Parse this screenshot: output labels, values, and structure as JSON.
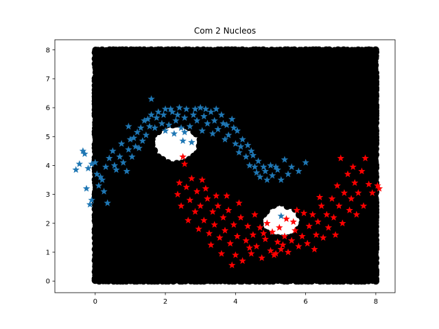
{
  "chart_data": {
    "type": "scatter",
    "title": "Com 2 Nucleos",
    "xlabel": "",
    "ylabel": "",
    "xlim": [
      -1.15,
      8.55
    ],
    "ylim": [
      -0.4,
      8.35
    ],
    "xticks": [
      0,
      2,
      4,
      6,
      8
    ],
    "yticks": [
      0,
      1,
      2,
      3,
      4,
      5,
      6,
      7,
      8
    ],
    "grid": false,
    "legend": "none",
    "background_region": {
      "marker": "circle",
      "color": "#000000",
      "x_range": [
        0,
        8
      ],
      "y_range": [
        0,
        8
      ],
      "excluded_regions": [
        {
          "center": [
            2.3,
            4.75
          ],
          "radius": 0.65
        },
        {
          "center": [
            5.3,
            2.05
          ],
          "radius": 0.55
        }
      ]
    },
    "series": [
      {
        "marker": "star",
        "color": "#1f77b4",
        "points": [
          [
            -0.55,
            3.85
          ],
          [
            -0.45,
            4.05
          ],
          [
            -0.35,
            4.5
          ],
          [
            -0.3,
            4.4
          ],
          [
            -0.25,
            3.2
          ],
          [
            -0.15,
            2.65
          ],
          [
            -0.1,
            2.8
          ],
          [
            -0.2,
            3.9
          ],
          [
            -0.1,
            4.05
          ],
          [
            0.0,
            4.1
          ],
          [
            0.05,
            3.7
          ],
          [
            0.1,
            3.3
          ],
          [
            0.2,
            3.5
          ],
          [
            0.25,
            3.1
          ],
          [
            0.35,
            2.7
          ],
          [
            0.3,
            3.95
          ],
          [
            0.4,
            4.25
          ],
          [
            0.5,
            4.5
          ],
          [
            0.55,
            4.0
          ],
          [
            0.6,
            3.85
          ],
          [
            0.7,
            4.3
          ],
          [
            0.75,
            4.75
          ],
          [
            0.8,
            4.1
          ],
          [
            0.9,
            3.8
          ],
          [
            0.95,
            4.55
          ],
          [
            1.0,
            4.9
          ],
          [
            1.05,
            4.3
          ],
          [
            1.1,
            4.95
          ],
          [
            1.2,
            5.15
          ],
          [
            1.25,
            4.6
          ],
          [
            1.3,
            5.3
          ],
          [
            1.4,
            5.55
          ],
          [
            1.45,
            5.05
          ],
          [
            1.5,
            5.6
          ],
          [
            1.6,
            5.75
          ],
          [
            1.6,
            6.3
          ],
          [
            1.7,
            5.3
          ],
          [
            1.8,
            5.85
          ],
          [
            1.9,
            5.45
          ],
          [
            2.0,
            5.95
          ],
          [
            2.0,
            5.2
          ],
          [
            2.1,
            5.4
          ],
          [
            2.2,
            5.85
          ],
          [
            2.25,
            5.1
          ],
          [
            2.3,
            5.55
          ],
          [
            2.4,
            6.0
          ],
          [
            2.45,
            5.3
          ],
          [
            2.5,
            4.85
          ],
          [
            2.55,
            5.65
          ],
          [
            2.6,
            5.95
          ],
          [
            2.7,
            5.35
          ],
          [
            2.75,
            4.8
          ],
          [
            2.8,
            5.75
          ],
          [
            2.9,
            5.55
          ],
          [
            3.0,
            6.0
          ],
          [
            3.05,
            5.2
          ],
          [
            3.1,
            5.7
          ],
          [
            3.2,
            5.45
          ],
          [
            3.3,
            5.85
          ],
          [
            3.35,
            5.1
          ],
          [
            3.4,
            5.55
          ],
          [
            3.5,
            5.25
          ],
          [
            3.6,
            5.75
          ],
          [
            3.7,
            4.9
          ],
          [
            3.75,
            5.4
          ],
          [
            3.8,
            5.05
          ],
          [
            3.9,
            5.6
          ],
          [
            4.0,
            4.75
          ],
          [
            4.05,
            5.2
          ],
          [
            4.1,
            4.45
          ],
          [
            4.2,
            4.9
          ],
          [
            4.3,
            4.3
          ],
          [
            4.35,
            4.7
          ],
          [
            4.4,
            4.0
          ],
          [
            4.5,
            4.35
          ],
          [
            4.6,
            3.75
          ],
          [
            4.65,
            4.15
          ],
          [
            4.7,
            3.6
          ],
          [
            4.8,
            3.95
          ],
          [
            4.9,
            3.5
          ],
          [
            5.0,
            4.0
          ],
          [
            5.05,
            3.65
          ],
          [
            5.2,
            3.85
          ],
          [
            5.3,
            3.5
          ],
          [
            5.4,
            4.2
          ],
          [
            5.5,
            3.7
          ],
          [
            5.6,
            3.95
          ],
          [
            5.8,
            3.8
          ],
          [
            6.0,
            4.1
          ],
          [
            5.3,
            2.25
          ],
          [
            0.95,
            5.35
          ],
          [
            1.15,
            4.65
          ],
          [
            1.35,
            4.85
          ],
          [
            1.55,
            5.35
          ],
          [
            1.75,
            5.65
          ],
          [
            1.95,
            5.75
          ],
          [
            2.15,
            5.95
          ],
          [
            2.35,
            5.75
          ],
          [
            2.55,
            5.15
          ],
          [
            2.85,
            5.95
          ],
          [
            3.15,
            5.95
          ],
          [
            3.45,
            5.95
          ],
          [
            3.65,
            5.45
          ],
          [
            3.95,
            5.3
          ],
          [
            4.15,
            4.65
          ],
          [
            4.45,
            4.5
          ],
          [
            4.55,
            3.95
          ],
          [
            4.85,
            3.8
          ],
          [
            5.15,
            3.95
          ],
          [
            0.15,
            3.6
          ]
        ]
      },
      {
        "marker": "star",
        "color": "#ff0000",
        "points": [
          [
            2.35,
            3.0
          ],
          [
            2.4,
            3.4
          ],
          [
            2.45,
            2.6
          ],
          [
            2.5,
            4.3
          ],
          [
            2.55,
            4.05
          ],
          [
            2.6,
            3.25
          ],
          [
            2.7,
            2.8
          ],
          [
            2.75,
            3.55
          ],
          [
            2.85,
            2.4
          ],
          [
            2.9,
            3.1
          ],
          [
            3.0,
            2.6
          ],
          [
            3.05,
            3.5
          ],
          [
            3.1,
            2.1
          ],
          [
            3.2,
            2.85
          ],
          [
            3.25,
            1.65
          ],
          [
            3.35,
            2.4
          ],
          [
            3.4,
            1.95
          ],
          [
            3.5,
            2.6
          ],
          [
            3.55,
            1.5
          ],
          [
            3.65,
            2.2
          ],
          [
            3.7,
            1.75
          ],
          [
            3.8,
            2.45
          ],
          [
            3.85,
            1.3
          ],
          [
            3.95,
            1.95
          ],
          [
            4.0,
            0.9
          ],
          [
            4.05,
            1.55
          ],
          [
            4.15,
            2.2
          ],
          [
            4.2,
            0.7
          ],
          [
            4.3,
            1.4
          ],
          [
            4.35,
            1.9
          ],
          [
            4.45,
            0.95
          ],
          [
            4.5,
            1.6
          ],
          [
            4.55,
            2.3
          ],
          [
            4.6,
            1.2
          ],
          [
            4.7,
            1.85
          ],
          [
            4.75,
            0.8
          ],
          [
            4.85,
            1.45
          ],
          [
            4.9,
            2.0
          ],
          [
            5.0,
            1.05
          ],
          [
            5.05,
            1.7
          ],
          [
            5.1,
            0.9
          ],
          [
            5.2,
            1.35
          ],
          [
            5.25,
            1.85
          ],
          [
            5.3,
            1.1
          ],
          [
            5.4,
            1.55
          ],
          [
            5.45,
            2.15
          ],
          [
            5.5,
            1.0
          ],
          [
            5.6,
            1.4
          ],
          [
            5.7,
            1.75
          ],
          [
            5.8,
            1.2
          ],
          [
            5.9,
            1.55
          ],
          [
            5.95,
            2.35
          ],
          [
            6.05,
            1.3
          ],
          [
            6.1,
            1.9
          ],
          [
            6.2,
            2.3
          ],
          [
            6.3,
            1.6
          ],
          [
            6.35,
            2.05
          ],
          [
            6.45,
            2.6
          ],
          [
            6.5,
            1.5
          ],
          [
            6.6,
            2.3
          ],
          [
            6.65,
            1.85
          ],
          [
            6.75,
            2.85
          ],
          [
            6.8,
            2.2
          ],
          [
            6.9,
            3.3
          ],
          [
            6.95,
            2.6
          ],
          [
            7.0,
            4.25
          ],
          [
            7.05,
            2.0
          ],
          [
            7.1,
            3.05
          ],
          [
            7.2,
            3.7
          ],
          [
            7.25,
            2.45
          ],
          [
            7.3,
            2.85
          ],
          [
            7.4,
            3.4
          ],
          [
            7.45,
            2.3
          ],
          [
            7.5,
            3.05
          ],
          [
            7.6,
            3.8
          ],
          [
            7.65,
            2.6
          ],
          [
            7.7,
            4.25
          ],
          [
            7.8,
            3.35
          ],
          [
            7.9,
            3.05
          ],
          [
            8.05,
            3.3
          ],
          [
            8.1,
            3.2
          ],
          [
            3.3,
            1.25
          ],
          [
            3.6,
            0.95
          ],
          [
            3.9,
            0.55
          ],
          [
            4.4,
            1.15
          ],
          [
            4.8,
            1.65
          ],
          [
            5.15,
            0.95
          ],
          [
            5.65,
            2.05
          ],
          [
            6.25,
            1.1
          ],
          [
            6.85,
            1.6
          ],
          [
            2.65,
            2.1
          ],
          [
            2.95,
            1.8
          ],
          [
            3.15,
            3.2
          ],
          [
            3.45,
            2.95
          ],
          [
            3.75,
            2.95
          ],
          [
            4.1,
            2.7
          ],
          [
            5.35,
            1.25
          ],
          [
            5.75,
            2.45
          ],
          [
            6.4,
            2.9
          ],
          [
            7.35,
            3.95
          ]
        ]
      }
    ]
  }
}
